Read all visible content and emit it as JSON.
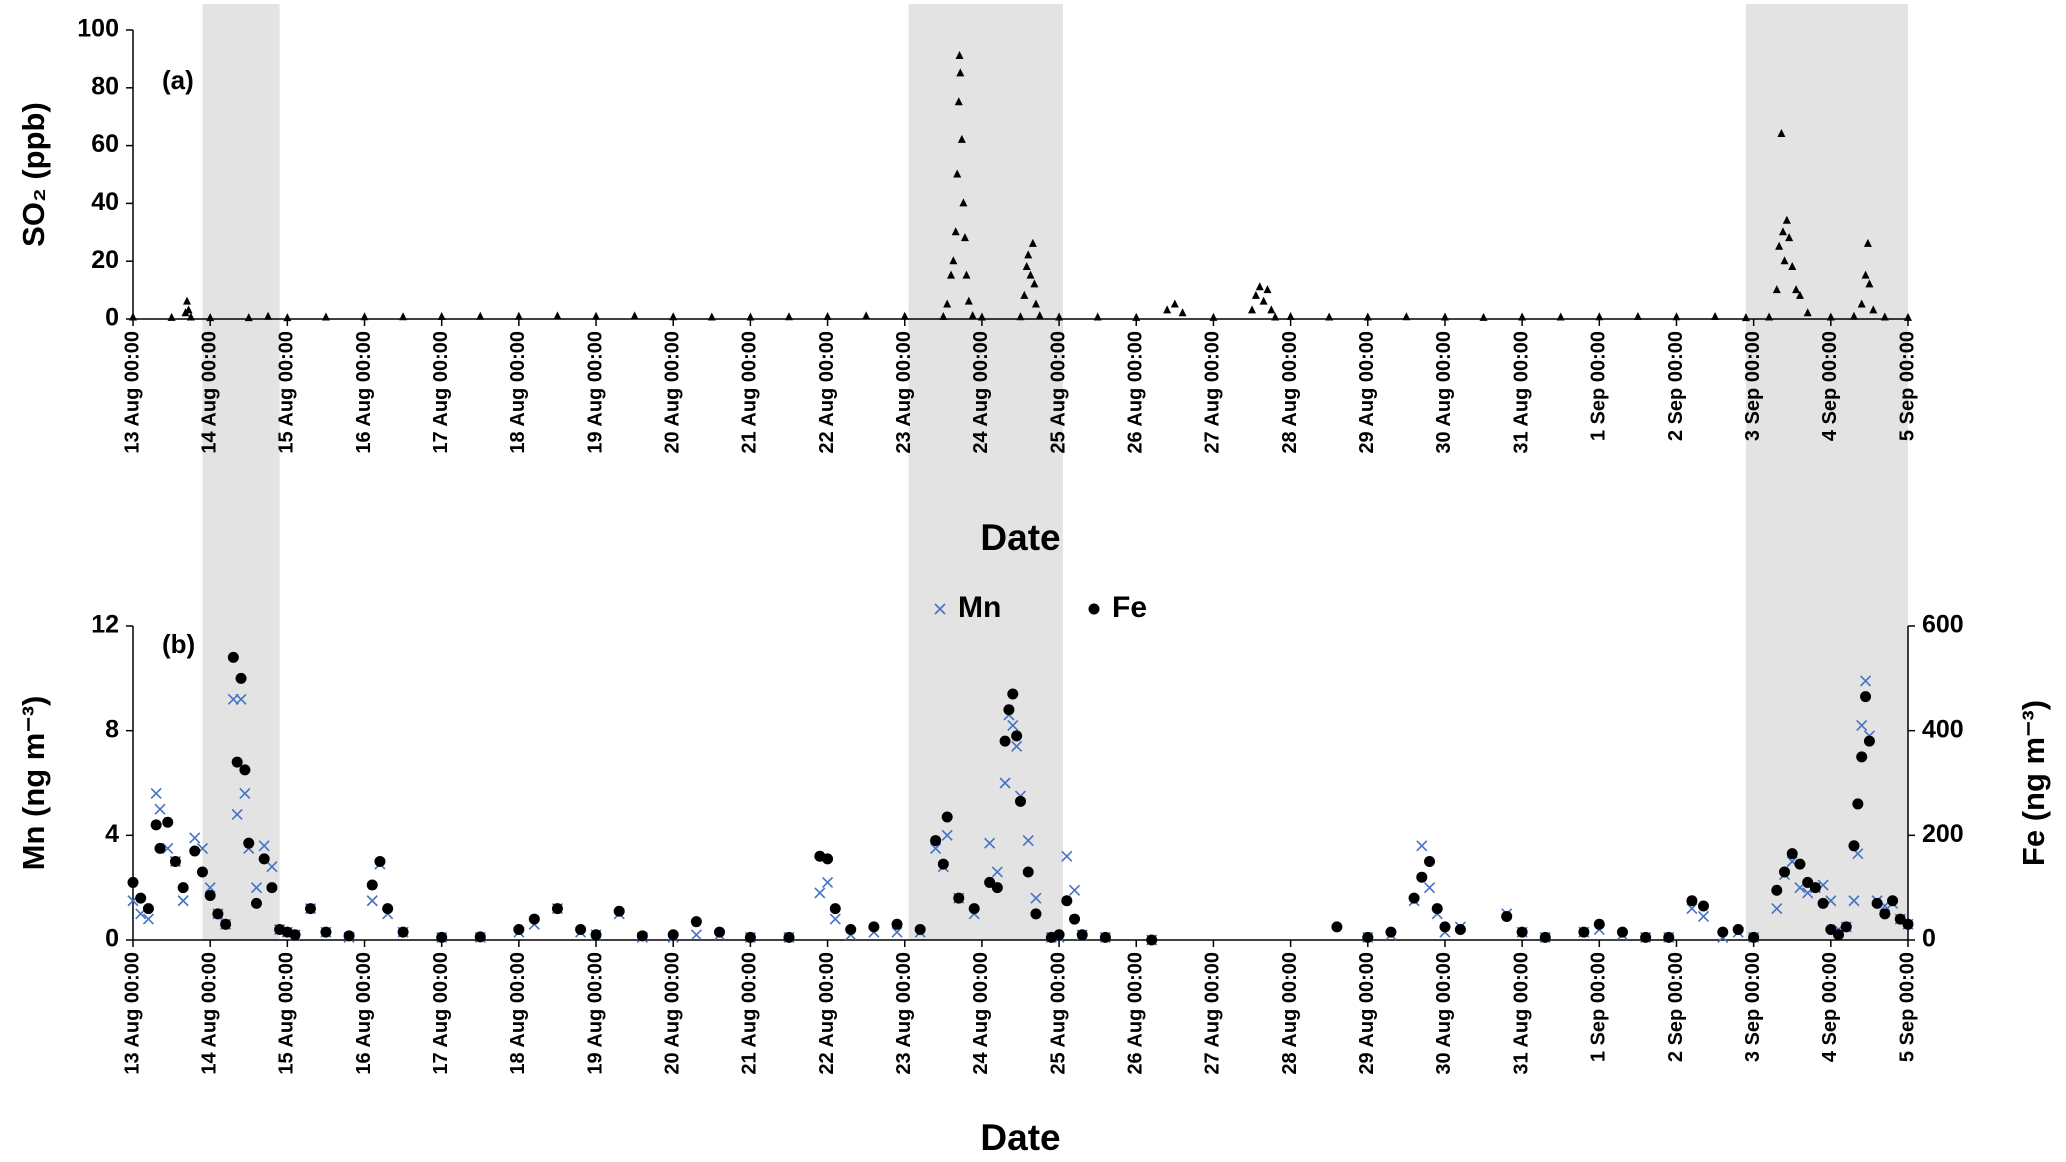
{
  "chart_data": [
    {
      "type": "scatter",
      "annotation": "(a)",
      "xlabel": "Date",
      "ylabel": "SO₂ (ppb)",
      "marker": "triangle",
      "color": "#000000",
      "xlim": [
        0,
        23
      ],
      "xticks": [
        {
          "value": 0,
          "label": "13 Aug 00:00"
        },
        {
          "value": 1,
          "label": "14 Aug 00:00"
        },
        {
          "value": 2,
          "label": "15 Aug 00:00"
        },
        {
          "value": 3,
          "label": "16 Aug 00:00"
        },
        {
          "value": 4,
          "label": "17 Aug 00:00"
        },
        {
          "value": 5,
          "label": "18 Aug 00:00"
        },
        {
          "value": 6,
          "label": "19 Aug 00:00"
        },
        {
          "value": 7,
          "label": "20 Aug 00:00"
        },
        {
          "value": 8,
          "label": "21 Aug 00:00"
        },
        {
          "value": 9,
          "label": "22 Aug 00:00"
        },
        {
          "value": 10,
          "label": "23 Aug 00:00"
        },
        {
          "value": 11,
          "label": "24 Aug 00:00"
        },
        {
          "value": 12,
          "label": "25 Aug 00:00"
        },
        {
          "value": 13,
          "label": "26 Aug 00:00"
        },
        {
          "value": 14,
          "label": "27 Aug 00:00"
        },
        {
          "value": 15,
          "label": "28 Aug 00:00"
        },
        {
          "value": 16,
          "label": "29 Aug 00:00"
        },
        {
          "value": 17,
          "label": "30 Aug 00:00"
        },
        {
          "value": 18,
          "label": "31 Aug 00:00"
        },
        {
          "value": 19,
          "label": "1 Sep 00:00"
        },
        {
          "value": 20,
          "label": "2 Sep 00:00"
        },
        {
          "value": 21,
          "label": "3 Sep 00:00"
        },
        {
          "value": 22,
          "label": "4 Sep 00:00"
        },
        {
          "value": 23,
          "label": "5 Sep 00:00"
        }
      ],
      "ylim": [
        0,
        100
      ],
      "yticks": [
        0,
        20,
        40,
        60,
        80,
        100
      ],
      "shaded_ranges": [
        [
          0.9,
          1.9
        ],
        [
          10.05,
          12.05
        ],
        [
          20.9,
          23
        ]
      ],
      "x": [
        0,
        0.5,
        0.68,
        0.7,
        0.72,
        0.75,
        1,
        1.5,
        1.75,
        2,
        2.5,
        3,
        3.5,
        4,
        4.5,
        5,
        5.5,
        6,
        6.5,
        7,
        7.5,
        8,
        8.5,
        9,
        9.5,
        10,
        10.5,
        10.55,
        10.6,
        10.63,
        10.66,
        10.68,
        10.7,
        10.71,
        10.72,
        10.74,
        10.76,
        10.78,
        10.8,
        10.83,
        10.88,
        11,
        11.5,
        11.55,
        11.58,
        11.6,
        11.63,
        11.66,
        11.68,
        11.7,
        11.75,
        12,
        12.5,
        13,
        13.4,
        13.5,
        13.6,
        14,
        14.5,
        14.55,
        14.6,
        14.65,
        14.7,
        14.75,
        14.8,
        15,
        15.5,
        16,
        16.5,
        17,
        17.5,
        18,
        18.5,
        19,
        19.5,
        20,
        20.5,
        20.9,
        21.2,
        21.3,
        21.33,
        21.36,
        21.38,
        21.4,
        21.43,
        21.46,
        21.5,
        21.55,
        21.6,
        21.7,
        22,
        22.3,
        22.4,
        22.45,
        22.48,
        22.5,
        22.55,
        22.7,
        23
      ],
      "values": [
        0.5,
        0.4,
        2,
        6,
        3,
        0.5,
        0.3,
        0.3,
        0.8,
        0.3,
        0.5,
        0.6,
        0.6,
        0.7,
        0.8,
        0.8,
        0.9,
        0.8,
        0.9,
        0.6,
        0.5,
        0.5,
        0.6,
        0.7,
        0.9,
        0.8,
        0.7,
        5,
        15,
        20,
        30,
        50,
        75,
        91,
        85,
        62,
        40,
        28,
        15,
        6,
        1,
        0.5,
        0.6,
        8,
        18,
        22,
        15,
        26,
        12,
        5,
        1,
        0.5,
        0.5,
        0.4,
        3,
        5,
        2,
        0.4,
        3,
        8,
        11,
        6,
        10,
        3,
        0.5,
        0.7,
        0.5,
        0.5,
        0.6,
        0.5,
        0.4,
        0.5,
        0.5,
        0.6,
        0.7,
        0.6,
        0.7,
        0.3,
        0.5,
        10,
        25,
        64,
        30,
        20,
        34,
        28,
        18,
        10,
        8,
        2,
        0.5,
        0.8,
        5,
        15,
        26,
        12,
        3,
        0.5,
        0.4
      ]
    },
    {
      "type": "scatter",
      "annotation": "(b)",
      "xlabel": "Date",
      "ylabel": "Mn (ng m⁻³)",
      "y2label": "Fe (ng m⁻³)",
      "xlim": [
        0,
        23
      ],
      "xticks": [
        {
          "value": 0,
          "label": "13 Aug 00:00"
        },
        {
          "value": 1,
          "label": "14 Aug 00:00"
        },
        {
          "value": 2,
          "label": "15 Aug 00:00"
        },
        {
          "value": 3,
          "label": "16 Aug 00:00"
        },
        {
          "value": 4,
          "label": "17 Aug 00:00"
        },
        {
          "value": 5,
          "label": "18 Aug 00:00"
        },
        {
          "value": 6,
          "label": "19 Aug 00:00"
        },
        {
          "value": 7,
          "label": "20 Aug 00:00"
        },
        {
          "value": 8,
          "label": "21 Aug 00:00"
        },
        {
          "value": 9,
          "label": "22 Aug 00:00"
        },
        {
          "value": 10,
          "label": "23 Aug 00:00"
        },
        {
          "value": 11,
          "label": "24 Aug 00:00"
        },
        {
          "value": 12,
          "label": "25 Aug 00:00"
        },
        {
          "value": 13,
          "label": "26 Aug 00:00"
        },
        {
          "value": 14,
          "label": "27 Aug 00:00"
        },
        {
          "value": 15,
          "label": "28 Aug 00:00"
        },
        {
          "value": 16,
          "label": "29 Aug 00:00"
        },
        {
          "value": 17,
          "label": "30 Aug 00:00"
        },
        {
          "value": 18,
          "label": "31 Aug 00:00"
        },
        {
          "value": 19,
          "label": "1 Sep 00:00"
        },
        {
          "value": 20,
          "label": "2 Sep 00:00"
        },
        {
          "value": 21,
          "label": "3 Sep 00:00"
        },
        {
          "value": 22,
          "label": "4 Sep 00:00"
        },
        {
          "value": 23,
          "label": "5 Sep 00:00"
        }
      ],
      "ylim": [
        0,
        12
      ],
      "yticks": [
        0,
        4,
        8,
        12
      ],
      "y2lim": [
        0,
        600
      ],
      "y2ticks": [
        0,
        200,
        400,
        600
      ],
      "x": [
        0,
        0.1,
        0.2,
        0.3,
        0.35,
        0.45,
        0.55,
        0.65,
        0.8,
        0.9,
        1,
        1.1,
        1.2,
        1.3,
        1.35,
        1.4,
        1.45,
        1.5,
        1.6,
        1.7,
        1.8,
        1.9,
        2,
        2.1,
        2.3,
        2.5,
        2.8,
        3.1,
        3.2,
        3.3,
        3.5,
        4,
        4.5,
        5,
        5.2,
        5.5,
        5.8,
        6,
        6.3,
        6.6,
        7,
        7.3,
        7.6,
        8,
        8.5,
        8.9,
        9,
        9.1,
        9.3,
        9.6,
        9.9,
        10.2,
        10.4,
        10.5,
        10.55,
        10.7,
        10.9,
        11.1,
        11.2,
        11.3,
        11.35,
        11.4,
        11.45,
        11.5,
        11.6,
        11.7,
        11.9,
        12,
        12.1,
        12.2,
        12.3,
        12.6,
        13.2,
        15.6,
        16,
        16.3,
        16.6,
        16.7,
        16.8,
        16.9,
        17,
        17.2,
        17.8,
        18,
        18.3,
        18.8,
        19,
        19.3,
        19.6,
        19.9,
        20.2,
        20.35,
        20.6,
        20.8,
        21,
        21.3,
        21.4,
        21.5,
        21.6,
        21.7,
        21.8,
        21.9,
        22,
        22.1,
        22.2,
        22.3,
        22.35,
        22.4,
        22.45,
        22.5,
        22.6,
        22.7,
        22.8,
        22.9,
        23
      ],
      "series": [
        {
          "name": "Mn",
          "color": "#4472c4",
          "marker": "x",
          "values": [
            1.5,
            1.0,
            0.8,
            5.6,
            5.0,
            3.5,
            3.0,
            1.5,
            3.9,
            3.5,
            2.0,
            1.0,
            0.6,
            9.2,
            4.8,
            9.2,
            5.6,
            3.5,
            2.0,
            3.6,
            2.8,
            0.4,
            0.3,
            0.2,
            1.2,
            0.3,
            0.1,
            1.5,
            2.9,
            1.0,
            0.3,
            0.1,
            0.1,
            0.3,
            0.6,
            1.2,
            0.3,
            0.2,
            1.0,
            0.1,
            0.1,
            0.2,
            0.2,
            0.1,
            0.1,
            1.8,
            2.2,
            0.8,
            0.2,
            0.3,
            0.3,
            0.3,
            3.5,
            2.8,
            4.0,
            1.6,
            1.0,
            3.7,
            2.6,
            6.0,
            8.6,
            8.2,
            7.4,
            5.5,
            3.8,
            1.6,
            0.1,
            0.1,
            3.2,
            1.9,
            0.2,
            0.1,
            0.0,
            null,
            0.1,
            0.2,
            1.5,
            3.6,
            2.0,
            1.0,
            0.3,
            0.5,
            1.0,
            0.3,
            0.1,
            0.3,
            0.4,
            0.2,
            0.1,
            0.1,
            1.2,
            0.9,
            0.1,
            0.3,
            0.1,
            1.2,
            2.5,
            3.0,
            2.0,
            1.8,
            2.0,
            2.1,
            1.5,
            0.4,
            0.5,
            1.5,
            3.3,
            8.2,
            9.9,
            7.8,
            1.5,
            1.3,
            1.4,
            0.8,
            0.6
          ]
        },
        {
          "name": "Fe",
          "color": "#000000",
          "marker": "circle",
          "axis": "y2",
          "values": [
            110,
            80,
            60,
            220,
            175,
            225,
            150,
            100,
            170,
            130,
            85,
            50,
            30,
            540,
            340,
            500,
            325,
            185,
            70,
            155,
            100,
            20,
            15,
            10,
            60,
            15,
            8,
            105,
            150,
            60,
            15,
            5,
            6,
            20,
            40,
            60,
            20,
            10,
            55,
            8,
            10,
            35,
            15,
            5,
            5,
            160,
            155,
            60,
            20,
            25,
            30,
            20,
            190,
            145,
            235,
            80,
            60,
            110,
            100,
            380,
            440,
            470,
            390,
            265,
            130,
            50,
            5,
            10,
            75,
            40,
            10,
            5,
            0,
            25,
            5,
            15,
            80,
            120,
            150,
            60,
            25,
            20,
            45,
            15,
            5,
            15,
            30,
            15,
            5,
            5,
            75,
            65,
            15,
            20,
            5,
            95,
            130,
            165,
            145,
            110,
            100,
            70,
            20,
            10,
            25,
            180,
            260,
            350,
            465,
            380,
            70,
            50,
            75,
            40,
            30
          ]
        }
      ]
    }
  ]
}
